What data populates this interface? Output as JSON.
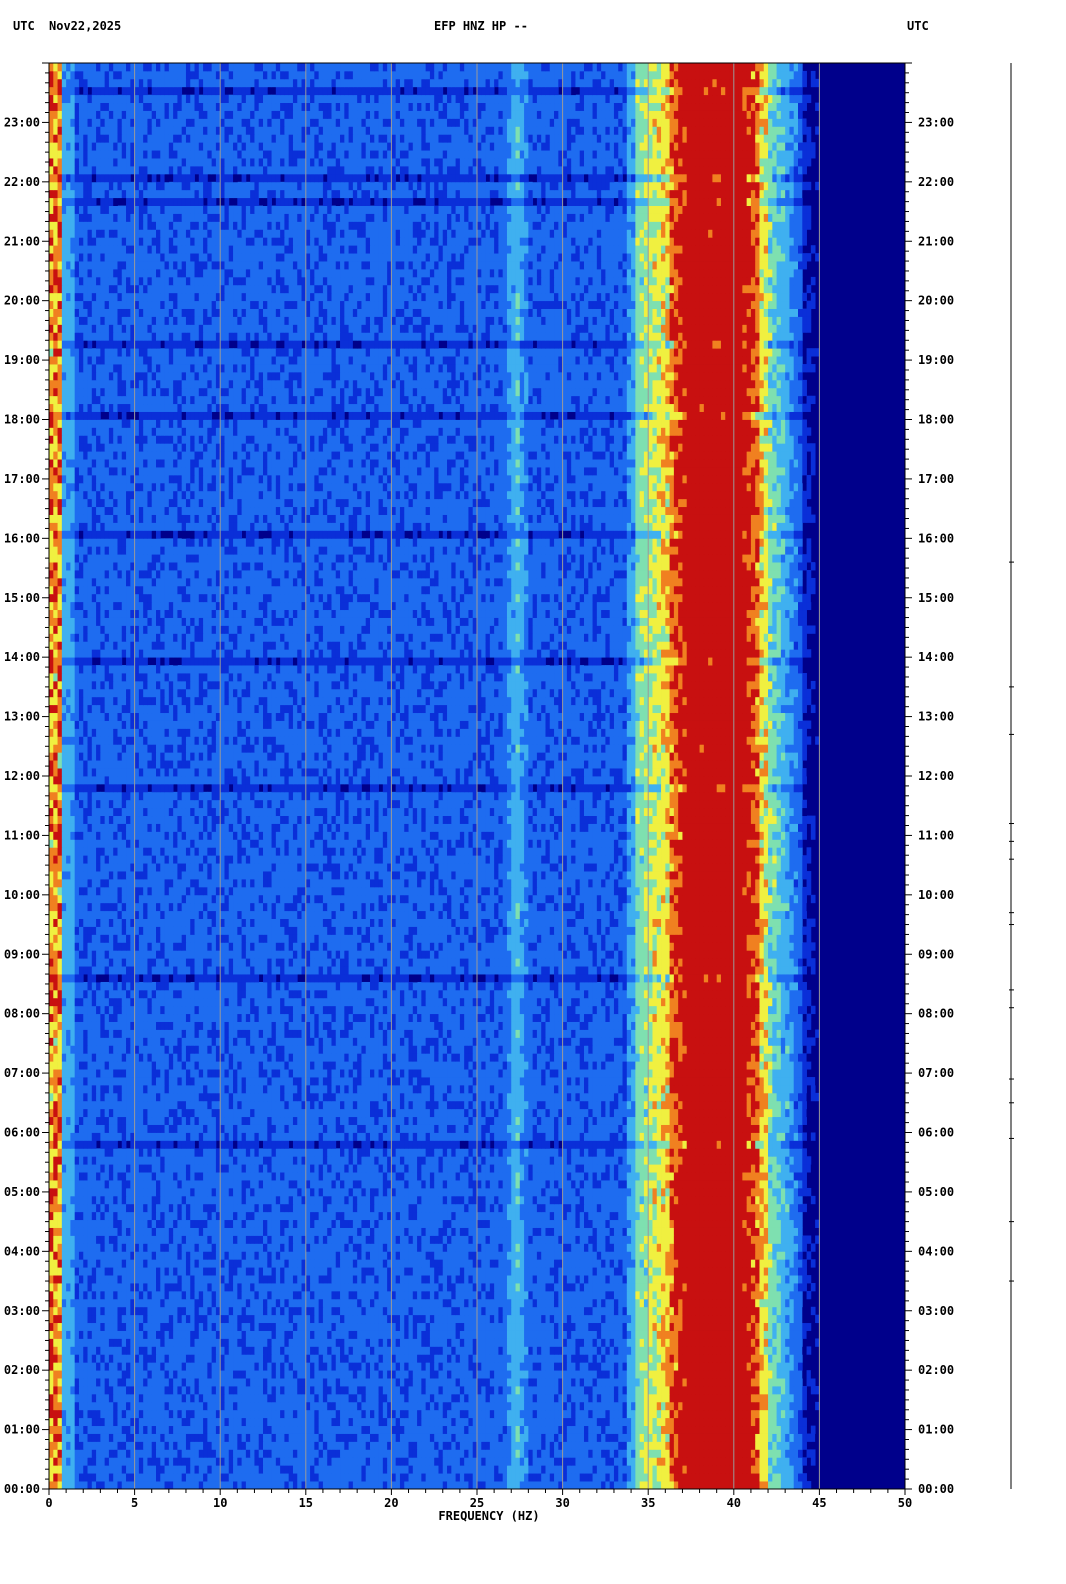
{
  "header": {
    "left_tz": "UTC",
    "date": "Nov22,2025",
    "station": "EFP HNZ HP --",
    "right_tz": "UTC"
  },
  "chart_data": {
    "type": "heatmap",
    "title": "EFP HNZ HP --",
    "date": "Nov22,2025",
    "xlabel": "FREQUENCY (HZ)",
    "ylabel": "UTC",
    "xlim": [
      0,
      50
    ],
    "ylim_hours": [
      0,
      24
    ],
    "x_ticks": [
      0,
      5,
      10,
      15,
      20,
      25,
      30,
      35,
      40,
      45,
      50
    ],
    "y_ticks": [
      "00:00",
      "01:00",
      "02:00",
      "03:00",
      "04:00",
      "05:00",
      "06:00",
      "07:00",
      "08:00",
      "09:00",
      "10:00",
      "11:00",
      "12:00",
      "13:00",
      "14:00",
      "15:00",
      "16:00",
      "17:00",
      "18:00",
      "19:00",
      "20:00",
      "21:00",
      "22:00",
      "23:00"
    ],
    "grid": true,
    "colormap": [
      "#00008b",
      "#0a2fd8",
      "#1e6cf0",
      "#3fb0f0",
      "#7ee0b0",
      "#f0f040",
      "#f08020",
      "#c81010"
    ],
    "features": [
      {
        "name": "persistent band",
        "freq_hz": 27.2
      },
      {
        "name": "persistent band",
        "freq_hz": 37.5
      },
      {
        "name": "persistent band",
        "freq_hz": 40.0
      },
      {
        "name": "low-frequency edge",
        "freq_hz": 0.3
      },
      {
        "name": "high-frequency rolloff",
        "freq_hz": 44.5
      }
    ]
  },
  "colors": {
    "background": "#ffffff",
    "plot_floor": "#00008b",
    "grid": "#9a9a9a",
    "axis": "#000000"
  }
}
